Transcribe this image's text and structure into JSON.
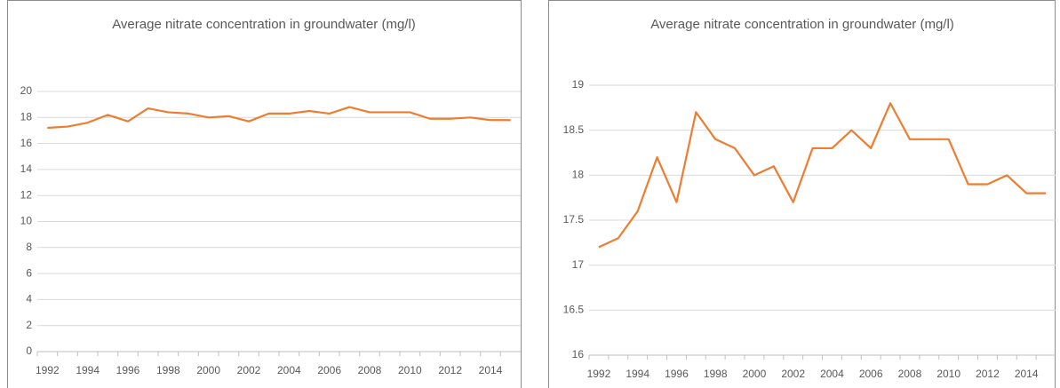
{
  "chart_data": [
    {
      "type": "line",
      "title": "Average nitrate concentration in groundwater (mg/l)",
      "categories": [
        "1992",
        null,
        "1994",
        null,
        "1996",
        null,
        "1998",
        null,
        "2000",
        null,
        "2002",
        null,
        "2004",
        null,
        "2006",
        null,
        "2008",
        null,
        "2010",
        null,
        "2012",
        null,
        "2014",
        null
      ],
      "values": [
        17.2,
        17.3,
        17.6,
        18.2,
        17.7,
        18.7,
        18.4,
        18.3,
        18.0,
        18.1,
        17.7,
        18.3,
        18.3,
        18.5,
        18.3,
        18.8,
        18.4,
        18.4,
        18.4,
        17.9,
        17.9,
        18.0,
        17.8,
        17.8
      ],
      "color": "#ed7d31",
      "ylim": [
        0,
        20
      ],
      "yticks": [
        0,
        2,
        4,
        6,
        8,
        10,
        12,
        14,
        16,
        18,
        20
      ],
      "grid": true
    },
    {
      "type": "line",
      "title": "Average nitrate concentration in groundwater (mg/l)",
      "categories": [
        "1992",
        null,
        "1994",
        null,
        "1996",
        null,
        "1998",
        null,
        "2000",
        null,
        "2002",
        null,
        "2004",
        null,
        "2006",
        null,
        "2008",
        null,
        "2010",
        null,
        "2012",
        null,
        "2014",
        null
      ],
      "values": [
        17.2,
        17.3,
        17.6,
        18.2,
        17.7,
        18.7,
        18.4,
        18.3,
        18.0,
        18.1,
        17.7,
        18.3,
        18.3,
        18.5,
        18.3,
        18.8,
        18.4,
        18.4,
        18.4,
        17.9,
        17.9,
        18.0,
        17.8,
        17.8
      ],
      "color": "#ed7d31",
      "ylim": [
        16,
        19
      ],
      "yticks": [
        16,
        16.5,
        17,
        17.5,
        18,
        18.5,
        19
      ],
      "grid": true
    }
  ]
}
